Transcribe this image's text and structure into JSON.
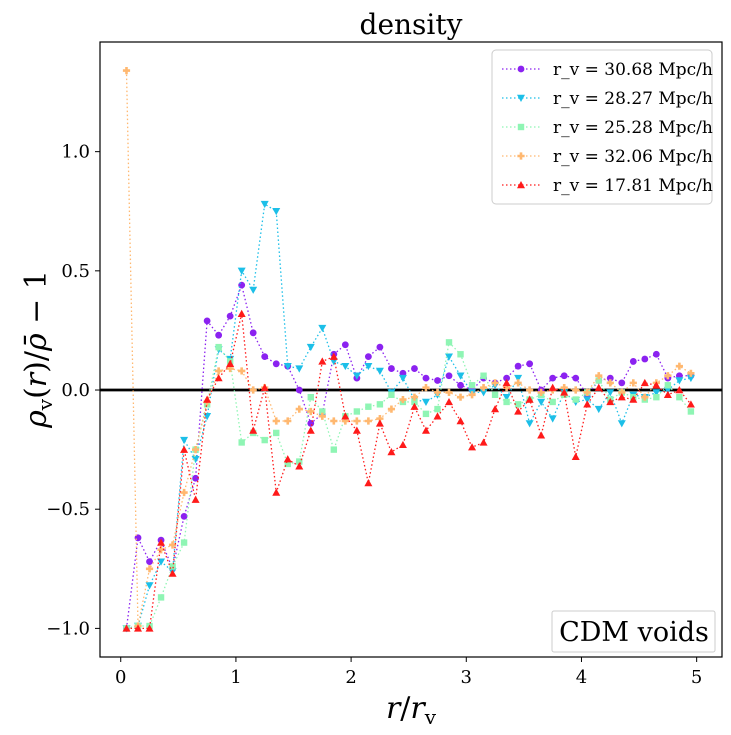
{
  "chart_data": {
    "type": "line",
    "title": "density",
    "xlabel": "r/r_v",
    "ylabel": "ρ_v(r)/ρ̄ − 1",
    "xlim": [
      -0.18,
      5.22
    ],
    "ylim": [
      -1.12,
      1.46
    ],
    "xticks": [
      0,
      1,
      2,
      3,
      4,
      5
    ],
    "xtick_labels": [
      "0",
      "1",
      "2",
      "3",
      "4",
      "5"
    ],
    "yticks": [
      -1.0,
      -0.5,
      0.0,
      0.5,
      1.0
    ],
    "ytick_labels": [
      "−1.0",
      "−0.5",
      "0.0",
      "0.5",
      "1.0"
    ],
    "hline": 0.0,
    "annotation": "CDM voids",
    "legend_position": "top-right",
    "series": [
      {
        "name": "r_v = 30.68 Mpc/h",
        "label": "r_v = 30.68 Mpc/h",
        "color": "#8b22f0",
        "marker": "circle",
        "x": [
          0.05,
          0.15,
          0.25,
          0.35,
          0.45,
          0.55,
          0.65,
          0.75,
          0.85,
          0.95,
          1.05,
          1.15,
          1.25,
          1.35,
          1.45,
          1.55,
          1.65,
          1.75,
          1.85,
          1.95,
          2.05,
          2.15,
          2.25,
          2.35,
          2.45,
          2.55,
          2.65,
          2.75,
          2.85,
          2.95,
          3.05,
          3.15,
          3.25,
          3.35,
          3.45,
          3.55,
          3.65,
          3.75,
          3.85,
          3.95,
          4.05,
          4.15,
          4.25,
          4.35,
          4.45,
          4.55,
          4.65,
          4.75,
          4.85,
          4.95
        ],
        "values": [
          -1.0,
          -0.62,
          -0.72,
          -0.63,
          -0.75,
          -0.53,
          -0.37,
          0.29,
          0.23,
          0.31,
          0.44,
          0.24,
          0.14,
          0.11,
          0.1,
          0.0,
          -0.14,
          -0.1,
          0.15,
          0.19,
          0.05,
          0.14,
          0.18,
          0.09,
          0.07,
          0.09,
          0.05,
          0.04,
          0.06,
          0.02,
          0.0,
          0.05,
          0.03,
          0.05,
          0.1,
          0.11,
          0.0,
          0.05,
          0.06,
          0.05,
          -0.02,
          0.04,
          0.05,
          0.03,
          0.12,
          0.13,
          0.15,
          0.05,
          0.06,
          0.06
        ]
      },
      {
        "name": "r_v = 28.27 Mpc/h",
        "label": "r_v = 28.27 Mpc/h",
        "color": "#1cbfe8",
        "marker": "triangle-down",
        "x": [
          0.05,
          0.15,
          0.25,
          0.35,
          0.45,
          0.55,
          0.65,
          0.75,
          0.85,
          0.95,
          1.05,
          1.15,
          1.25,
          1.35,
          1.45,
          1.55,
          1.65,
          1.75,
          1.85,
          1.95,
          2.05,
          2.15,
          2.25,
          2.35,
          2.45,
          2.55,
          2.65,
          2.75,
          2.85,
          2.95,
          3.05,
          3.15,
          3.25,
          3.35,
          3.45,
          3.55,
          3.65,
          3.75,
          3.85,
          3.95,
          4.05,
          4.15,
          4.25,
          4.35,
          4.45,
          4.55,
          4.65,
          4.75,
          4.85,
          4.95
        ],
        "values": [
          -1.0,
          -0.99,
          -0.82,
          -0.72,
          -0.76,
          -0.21,
          -0.29,
          -0.11,
          0.17,
          0.13,
          0.5,
          0.42,
          0.78,
          0.75,
          0.1,
          0.09,
          0.18,
          0.26,
          0.12,
          0.1,
          0.06,
          0.1,
          0.08,
          -0.01,
          0.05,
          -0.04,
          -0.05,
          -0.02,
          0.14,
          0.06,
          -0.01,
          -0.01,
          0.02,
          -0.03,
          0.05,
          -0.14,
          -0.05,
          -0.12,
          -0.01,
          -0.05,
          -0.04,
          -0.08,
          -0.01,
          -0.14,
          -0.02,
          -0.03,
          -0.01,
          0.0,
          0.04,
          0.05
        ]
      },
      {
        "name": "r_v = 25.28 Mpc/h",
        "label": "r_v = 25.28 Mpc/h",
        "color": "#8ff5b4",
        "marker": "square",
        "x": [
          0.05,
          0.15,
          0.25,
          0.35,
          0.45,
          0.55,
          0.65,
          0.75,
          0.85,
          0.95,
          1.05,
          1.15,
          1.25,
          1.35,
          1.45,
          1.55,
          1.65,
          1.75,
          1.85,
          1.95,
          2.05,
          2.15,
          2.25,
          2.35,
          2.45,
          2.55,
          2.65,
          2.75,
          2.85,
          2.95,
          3.05,
          3.15,
          3.25,
          3.35,
          3.45,
          3.55,
          3.65,
          3.75,
          3.85,
          3.95,
          4.05,
          4.15,
          4.25,
          4.35,
          4.45,
          4.55,
          4.65,
          4.75,
          4.85,
          4.95
        ],
        "values": [
          -1.0,
          -0.99,
          -0.99,
          -0.87,
          -0.74,
          -0.64,
          -0.25,
          -0.06,
          0.18,
          0.12,
          -0.22,
          -0.18,
          -0.21,
          -0.18,
          -0.31,
          -0.3,
          -0.03,
          -0.09,
          -0.25,
          -0.11,
          -0.09,
          -0.07,
          -0.06,
          -0.02,
          -0.05,
          -0.05,
          -0.1,
          -0.08,
          0.2,
          0.15,
          0.02,
          0.06,
          -0.02,
          -0.05,
          -0.06,
          -0.04,
          -0.02,
          -0.05,
          -0.02,
          -0.04,
          -0.01,
          0.04,
          -0.04,
          -0.01,
          -0.03,
          -0.04,
          -0.03,
          0.02,
          -0.03,
          -0.09
        ]
      },
      {
        "name": "r_v = 32.06 Mpc/h",
        "label": "r_v = 32.06 Mpc/h",
        "color": "#ffb870",
        "marker": "plus",
        "x": [
          0.05,
          0.15,
          0.25,
          0.35,
          0.45,
          0.55,
          0.65,
          0.75,
          0.85,
          0.95,
          1.05,
          1.15,
          1.25,
          1.35,
          1.45,
          1.55,
          1.65,
          1.75,
          1.85,
          1.95,
          2.05,
          2.15,
          2.25,
          2.35,
          2.45,
          2.55,
          2.65,
          2.75,
          2.85,
          2.95,
          3.05,
          3.15,
          3.25,
          3.35,
          3.45,
          3.55,
          3.65,
          3.75,
          3.85,
          3.95,
          4.05,
          4.15,
          4.25,
          4.35,
          4.45,
          4.55,
          4.65,
          4.75,
          4.85,
          4.95
        ],
        "values": [
          1.34,
          -0.99,
          -0.75,
          -0.67,
          -0.65,
          -0.43,
          -0.25,
          -0.05,
          0.08,
          0.09,
          0.08,
          0.0,
          0.01,
          -0.13,
          -0.13,
          -0.08,
          -0.09,
          -0.11,
          -0.13,
          -0.13,
          -0.13,
          -0.13,
          -0.12,
          -0.08,
          -0.04,
          -0.03,
          0.01,
          -0.01,
          -0.01,
          -0.03,
          -0.02,
          0.01,
          0.03,
          0.01,
          0.03,
          0.0,
          -0.01,
          0.0,
          0.01,
          0.0,
          -0.01,
          0.06,
          0.03,
          -0.01,
          0.03,
          -0.03,
          0.03,
          0.06,
          0.1,
          0.07
        ]
      },
      {
        "name": "r_v = 17.81 Mpc/h",
        "label": "r_v = 17.81 Mpc/h",
        "color": "#ff1a1a",
        "marker": "triangle-up",
        "x": [
          0.05,
          0.15,
          0.25,
          0.35,
          0.45,
          0.55,
          0.65,
          0.75,
          0.85,
          0.95,
          1.05,
          1.15,
          1.25,
          1.35,
          1.45,
          1.55,
          1.65,
          1.75,
          1.85,
          1.95,
          2.05,
          2.15,
          2.25,
          2.35,
          2.45,
          2.55,
          2.65,
          2.75,
          2.85,
          2.95,
          3.05,
          3.15,
          3.25,
          3.35,
          3.45,
          3.55,
          3.65,
          3.75,
          3.85,
          3.95,
          4.05,
          4.15,
          4.25,
          4.35,
          4.45,
          4.55,
          4.65,
          4.75,
          4.85,
          4.95
        ],
        "values": [
          -1.0,
          -1.0,
          -1.0,
          -0.64,
          -0.77,
          -0.25,
          -0.46,
          -0.04,
          0.05,
          0.11,
          0.32,
          -0.17,
          0.01,
          -0.43,
          -0.29,
          -0.32,
          -0.17,
          0.12,
          0.14,
          -0.11,
          -0.17,
          -0.39,
          -0.14,
          -0.26,
          -0.23,
          -0.07,
          -0.17,
          -0.11,
          -0.05,
          -0.13,
          -0.24,
          -0.22,
          -0.08,
          0.03,
          -0.09,
          -0.04,
          -0.19,
          0.01,
          -0.01,
          -0.28,
          -0.06,
          0.01,
          -0.05,
          -0.03,
          -0.04,
          0.03,
          0.02,
          -0.02,
          0.0,
          -0.06
        ]
      }
    ]
  }
}
